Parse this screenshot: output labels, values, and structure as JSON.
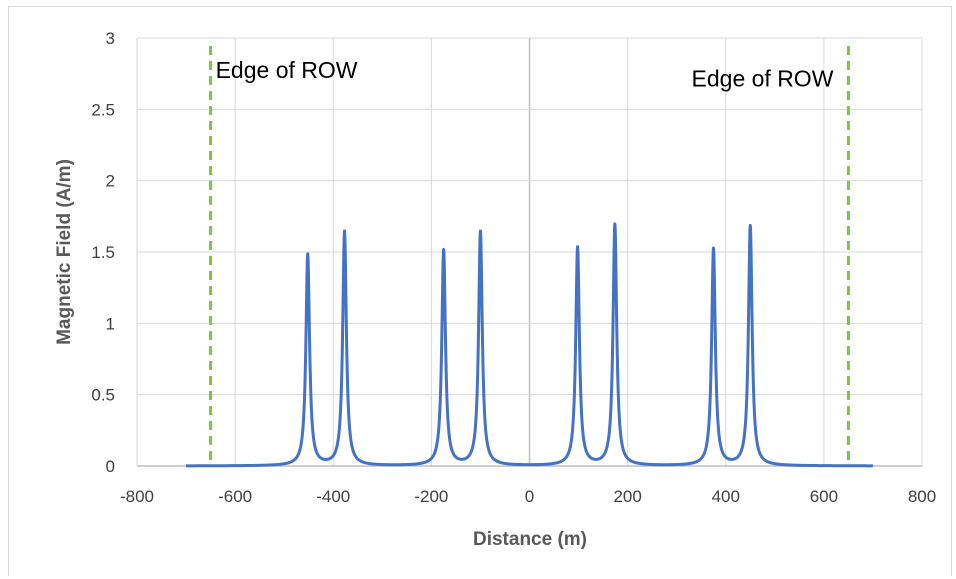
{
  "chart_data": {
    "type": "line",
    "title": "",
    "xlabel": "Distance (m)",
    "ylabel": "Magnetic Field (A/m)",
    "xlim": [
      -800,
      800
    ],
    "ylim": [
      0,
      3
    ],
    "xticks": [
      -800,
      -600,
      -400,
      -200,
      0,
      200,
      400,
      600,
      800
    ],
    "yticks": [
      0,
      0.5,
      1,
      1.5,
      2,
      2.5,
      3
    ],
    "xtick_labels": [
      "-800",
      "-600",
      "-400",
      "-200",
      "0",
      "200",
      "400",
      "600",
      "800"
    ],
    "ytick_labels": [
      "0",
      "0.5",
      "1",
      "1.5",
      "2",
      "2.5",
      "3"
    ],
    "grid": true,
    "legend": "none",
    "series": [
      {
        "color": "#4472c4",
        "x_range": [
          -700,
          700
        ],
        "peaks": [
          {
            "x": -452,
            "y": 1.48
          },
          {
            "x": -377,
            "y": 1.64
          },
          {
            "x": -175,
            "y": 1.51
          },
          {
            "x": -100,
            "y": 1.64
          },
          {
            "x": 98,
            "y": 1.53
          },
          {
            "x": 174,
            "y": 1.69
          },
          {
            "x": 375,
            "y": 1.52
          },
          {
            "x": 450,
            "y": 1.68
          }
        ]
      }
    ],
    "reference_lines": [
      {
        "x": -650,
        "color": "#7dc24b",
        "style": "dashed"
      },
      {
        "x": 650,
        "color": "#7dc24b",
        "style": "dashed"
      }
    ],
    "annotations": [
      {
        "text": "Edge of ROW",
        "x": -650,
        "y": 2.72
      },
      {
        "text": "Edge of ROW",
        "x": 650,
        "y": 2.66
      }
    ],
    "colors": {
      "line": "#4472c4",
      "reference": "#7dc24b",
      "grid": "#d9d9d9",
      "zero_line": "#bfbfbf"
    }
  }
}
